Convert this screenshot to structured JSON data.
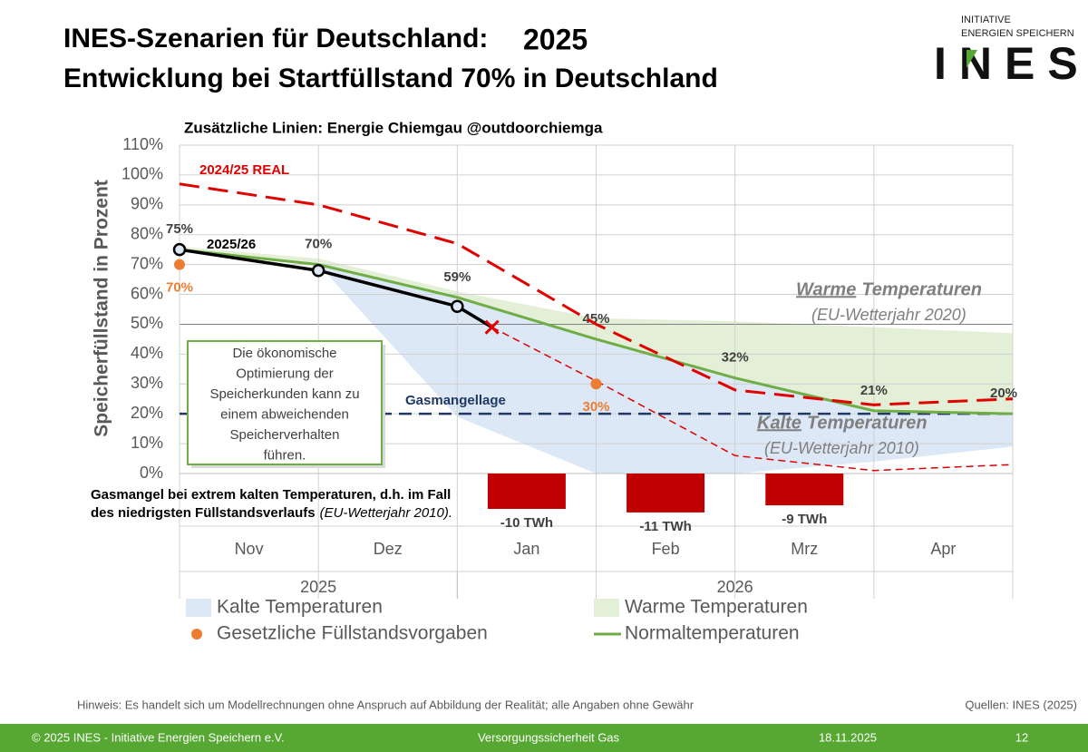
{
  "chart_data": {
    "type": "line",
    "title": [
      "INES-Szenarien für Deutschland:",
      "2025",
      "Entwicklung bei Startfüllstand 70% in Deutschland"
    ],
    "logo": [
      "INITIATIVE",
      "ENERGIEN SPEICHERN",
      "INES"
    ],
    "subtitle": "Zusätzliche Linien: Energie Chiemgau @outdoorchiemga",
    "ylabel": "Speicherfüllstand in Prozent",
    "categories": [
      "Nov",
      "Dez",
      "Jan",
      "Feb",
      "Mrz",
      "Apr"
    ],
    "years": [
      {
        "label": "2025",
        "months": 2
      },
      {
        "label": "2026",
        "months": 4
      }
    ],
    "xlim": [
      0,
      6
    ],
    "ylim": [
      0,
      110
    ],
    "yticks": [
      {
        "value": 0,
        "label": "0%"
      },
      {
        "value": 10,
        "label": "10%"
      },
      {
        "value": 20,
        "label": "20%"
      },
      {
        "value": 30,
        "label": "30%"
      },
      {
        "value": 40,
        "label": "40%"
      },
      {
        "value": 50,
        "label": "50%"
      },
      {
        "value": 60,
        "label": "60%"
      },
      {
        "value": 70,
        "label": "70%"
      },
      {
        "value": 80,
        "label": "80%"
      },
      {
        "value": 90,
        "label": "90%"
      },
      {
        "value": 100,
        "label": "100%"
      },
      {
        "value": 110,
        "label": "110%"
      }
    ],
    "grid": true,
    "series": [
      {
        "name": "Kalte Temperaturen",
        "type": "area",
        "color": "#dce8f5",
        "in_legend": true,
        "x": [
          0,
          1,
          2,
          3,
          4,
          5,
          6
        ],
        "values": [
          75,
          70,
          19,
          0,
          0,
          4,
          9
        ]
      },
      {
        "name": "Warme Temperaturen",
        "type": "area",
        "color": "#e3efd6",
        "in_legend": true,
        "x": [
          0,
          1,
          2,
          3,
          4,
          5,
          6
        ],
        "values": [
          76,
          72,
          61,
          52,
          51,
          49,
          47
        ]
      },
      {
        "name": "Gesetzliche Füllstandsvorgaben",
        "type": "points",
        "color": "#ed7d31",
        "in_legend": true,
        "x": [
          0,
          3
        ],
        "values": [
          70,
          30
        ],
        "value_labels": [
          "70%",
          "30%"
        ]
      },
      {
        "name": "Normaltemperaturen",
        "type": "line",
        "style": "solid",
        "color": "#70ad47",
        "in_legend": true,
        "x": [
          0,
          1,
          2,
          3,
          4,
          5,
          6
        ],
        "values": [
          75,
          70,
          59,
          45,
          32,
          21,
          20
        ],
        "value_labels": [
          "75%",
          "70%",
          "59%",
          "45%",
          "32%",
          "21%",
          "20%"
        ]
      },
      {
        "name": "2024/25 REAL",
        "type": "line",
        "style": "dashed",
        "color": "#e00000",
        "x": [
          0,
          1,
          2,
          3,
          4,
          5,
          6
        ],
        "values": [
          97,
          90,
          77,
          50,
          28,
          23,
          25
        ]
      },
      {
        "name": "2025/26",
        "type": "line",
        "style": "solid",
        "color": "#000000",
        "end_marker": "x",
        "x": [
          0,
          1,
          2,
          2.25
        ],
        "values": [
          75,
          68,
          56,
          49
        ]
      },
      {
        "type": "line",
        "style": "thin-dashed",
        "color": "#e00000",
        "x": [
          2.25,
          3,
          4,
          5,
          6
        ],
        "values": [
          49,
          31,
          6,
          1,
          3
        ]
      }
    ],
    "threshold": {
      "label": "Gasmangellage",
      "value": 20,
      "color": "#1f3864"
    },
    "shortage": {
      "values": [
        null,
        null,
        -10,
        -11,
        -9,
        null
      ],
      "value_labels": [
        null,
        null,
        "-10 TWh",
        "-11 TWh",
        "-9 TWh",
        null
      ],
      "color": "#c00000",
      "note": [
        "Gasmangel bei extrem kalten Temperaturen, d.h. im Fall",
        "des niedrigsten Füllstandsverlaufs",
        "(EU-Wetterjahr 2010)."
      ]
    },
    "box_text": [
      "Die ökonomische",
      "Optimierung der",
      "Speicherkunden kann zu",
      "einem abweichenden",
      "Speicherverhalten",
      "führen."
    ],
    "warm_note": [
      "Warme",
      "Temperaturen",
      "(EU-Wetterjahr 2020)"
    ],
    "cold_note": [
      "Kalte",
      "Temperaturen",
      "(EU-Wetterjahr 2010)"
    ],
    "hint": "Hinweis: Es handelt sich um Modellrechnungen ohne Anspruch auf Abbildung der Realität; alle Angaben ohne Gewähr",
    "source": "Quellen: INES (2025)",
    "footer": [
      "© 2025 INES - Initiative Energien Speichern e.V.",
      "Versorgungssicherheit Gas",
      "18.11.2025",
      "12"
    ]
  }
}
